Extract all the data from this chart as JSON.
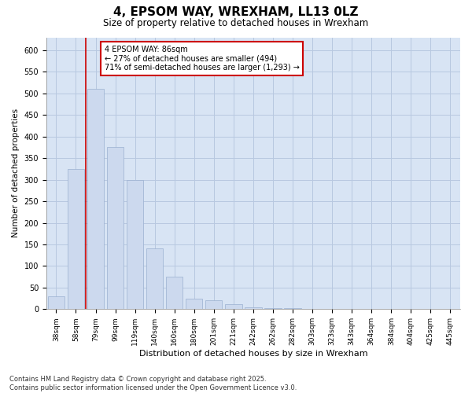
{
  "title": "4, EPSOM WAY, WREXHAM, LL13 0LZ",
  "subtitle": "Size of property relative to detached houses in Wrexham",
  "xlabel": "Distribution of detached houses by size in Wrexham",
  "ylabel": "Number of detached properties",
  "categories": [
    "38sqm",
    "58sqm",
    "79sqm",
    "99sqm",
    "119sqm",
    "140sqm",
    "160sqm",
    "180sqm",
    "201sqm",
    "221sqm",
    "242sqm",
    "262sqm",
    "282sqm",
    "303sqm",
    "323sqm",
    "343sqm",
    "364sqm",
    "384sqm",
    "404sqm",
    "425sqm",
    "445sqm"
  ],
  "values": [
    30,
    325,
    510,
    375,
    300,
    140,
    75,
    25,
    20,
    12,
    5,
    3,
    2,
    1,
    1,
    1,
    0,
    0,
    0,
    0,
    1
  ],
  "bar_color": "#ccd9ee",
  "bar_edge_color": "#9ab0d0",
  "grid_color": "#b8c8e0",
  "bg_color": "#d8e4f4",
  "vline_color": "#cc0000",
  "annotation_text": "4 EPSOM WAY: 86sqm\n← 27% of detached houses are smaller (494)\n71% of semi-detached houses are larger (1,293) →",
  "annotation_box_color": "#cc0000",
  "footer": "Contains HM Land Registry data © Crown copyright and database right 2025.\nContains public sector information licensed under the Open Government Licence v3.0.",
  "ylim": [
    0,
    630
  ],
  "yticks": [
    0,
    50,
    100,
    150,
    200,
    250,
    300,
    350,
    400,
    450,
    500,
    550,
    600
  ]
}
